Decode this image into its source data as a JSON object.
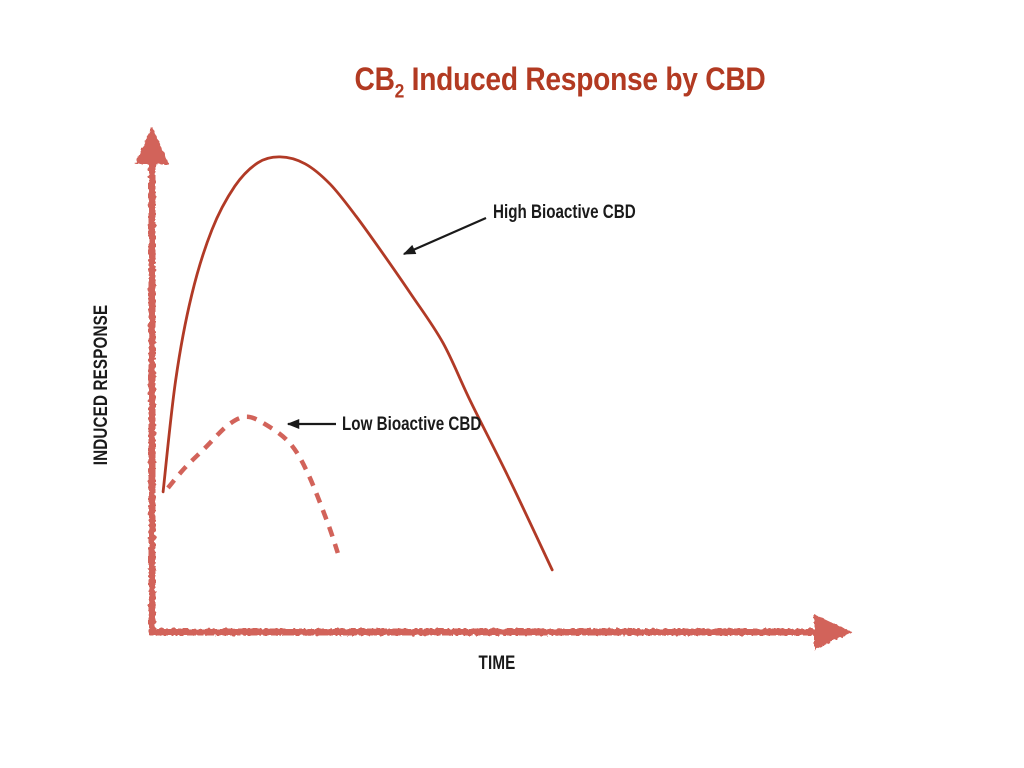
{
  "slide": {
    "background": "#FFFFFF"
  },
  "header": {
    "title_base": "CB",
    "title_sub": "2",
    "title_rest": " Induced Response by CBD"
  },
  "colors": {
    "title_red": "#B23A22",
    "curve_high_red": "#B13A26",
    "curve_low_salmon": "#D2635A",
    "axis_salmon": "#D2635A",
    "annotation_black": "#1A1A1A"
  },
  "chart_data": {
    "type": "line",
    "title": "CB₂ Induced Response by CBD",
    "xlabel": "TIME",
    "ylabel": "INDUCED RESPONSE",
    "x_axis": {
      "min": 0,
      "max": 1,
      "ticks": "none",
      "style": "hand-drawn arrow axis"
    },
    "y_axis": {
      "min": 0,
      "max": 1,
      "ticks": "none",
      "style": "hand-drawn arrow axis"
    },
    "grid": false,
    "legend": "inline-annotations",
    "series": [
      {
        "name": "High Bioactive CBD",
        "line_style": "solid",
        "color": "#B13A26",
        "stroke_width": 2.8,
        "dash_pattern": "",
        "points": [
          [
            0.016,
            0.282
          ],
          [
            0.034,
            0.507
          ],
          [
            0.057,
            0.678
          ],
          [
            0.086,
            0.809
          ],
          [
            0.119,
            0.897
          ],
          [
            0.152,
            0.944
          ],
          [
            0.184,
            0.956
          ],
          [
            0.22,
            0.942
          ],
          [
            0.256,
            0.901
          ],
          [
            0.293,
            0.837
          ],
          [
            0.33,
            0.765
          ],
          [
            0.371,
            0.682
          ],
          [
            0.418,
            0.582
          ],
          [
            0.458,
            0.463
          ],
          [
            0.514,
            0.306
          ],
          [
            0.575,
            0.125
          ]
        ]
      },
      {
        "name": "Low Bioactive CBD",
        "line_style": "dashed",
        "color": "#D2635A",
        "stroke_width": 4.5,
        "dash_pattern": "10 8",
        "points": [
          [
            0.023,
            0.29
          ],
          [
            0.047,
            0.33
          ],
          [
            0.076,
            0.37
          ],
          [
            0.109,
            0.416
          ],
          [
            0.136,
            0.433
          ],
          [
            0.165,
            0.416
          ],
          [
            0.198,
            0.38
          ],
          [
            0.223,
            0.322
          ],
          [
            0.251,
            0.225
          ],
          [
            0.267,
            0.159
          ]
        ]
      }
    ],
    "annotations": [
      {
        "label": "High Bioactive CBD",
        "targets_series": "High Bioactive CBD"
      },
      {
        "label": "Low Bioactive CBD",
        "targets_series": "Low Bioactive CBD"
      }
    ]
  }
}
